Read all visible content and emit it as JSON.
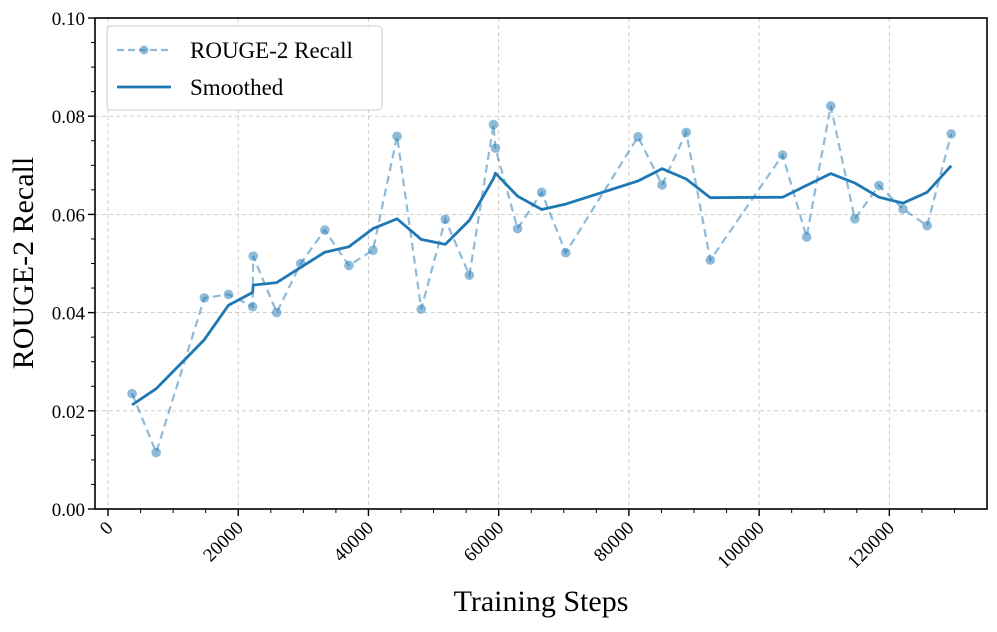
{
  "chart_data": {
    "type": "line",
    "title": "",
    "xlabel": "Training Steps",
    "ylabel": "ROUGE-2 Recall",
    "xlim": [
      -2000,
      135000
    ],
    "ylim": [
      0,
      0.1
    ],
    "xticks": [
      0,
      20000,
      40000,
      60000,
      80000,
      100000,
      120000
    ],
    "xtick_labels": [
      "0",
      "20000",
      "40000",
      "60000",
      "80000",
      "100000",
      "120000"
    ],
    "yticks": [
      0,
      0.02,
      0.04,
      0.06,
      0.08,
      0.1
    ],
    "ytick_labels": [
      "0.00",
      "0.02",
      "0.04",
      "0.06",
      "0.08",
      "0.10"
    ],
    "grid": true,
    "legend_position": "upper-left",
    "series": [
      {
        "name": "ROUGE-2 Recall",
        "style": "dashed-markers",
        "color": "#1f77b4",
        "x": [
          3700,
          7400,
          14800,
          18500,
          22200,
          22300,
          25900,
          29600,
          33300,
          37000,
          40700,
          44400,
          48100,
          51800,
          55500,
          59200,
          59500,
          62900,
          66600,
          70300,
          81400,
          85100,
          88800,
          92500,
          103600,
          107300,
          111000,
          114700,
          118400,
          122100,
          125800,
          129500
        ],
        "y": [
          0.0235,
          0.0115,
          0.043,
          0.0437,
          0.0412,
          0.0515,
          0.04,
          0.05,
          0.0568,
          0.0496,
          0.0527,
          0.0759,
          0.0407,
          0.059,
          0.0476,
          0.0783,
          0.0735,
          0.0571,
          0.0645,
          0.0522,
          0.0758,
          0.066,
          0.0767,
          0.0507,
          0.0721,
          0.0554,
          0.0821,
          0.0591,
          0.0659,
          0.0611,
          0.0577,
          0.0764
        ]
      },
      {
        "name": "Smoothed",
        "style": "solid",
        "color": "#1f77b4",
        "x": [
          3700,
          7400,
          14800,
          18500,
          22200,
          22300,
          25900,
          29600,
          33300,
          37000,
          40700,
          44400,
          48100,
          51800,
          55500,
          59200,
          59500,
          62900,
          66600,
          70300,
          81400,
          85100,
          88800,
          92500,
          103600,
          107300,
          111000,
          114700,
          118400,
          122100,
          125800,
          129500
        ],
        "y": [
          0.0212,
          0.0245,
          0.0345,
          0.0415,
          0.0441,
          0.0456,
          0.0461,
          0.0492,
          0.0523,
          0.0534,
          0.0571,
          0.0591,
          0.0549,
          0.0539,
          0.0588,
          0.0673,
          0.0684,
          0.0637,
          0.061,
          0.0621,
          0.0668,
          0.0693,
          0.0672,
          0.0634,
          0.0635,
          0.0659,
          0.0683,
          0.0664,
          0.0635,
          0.0623,
          0.0645,
          0.0699
        ]
      }
    ]
  }
}
